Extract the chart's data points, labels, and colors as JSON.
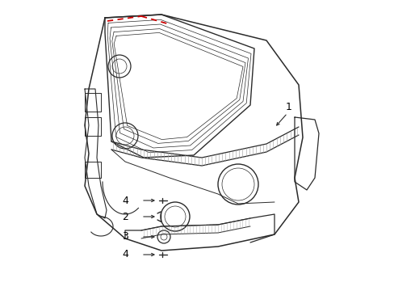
{
  "bg_color": "#ffffff",
  "line_color": "#2a2a2a",
  "red_color": "#cc0000",
  "label_color": "#000000",
  "fig_width": 4.89,
  "fig_height": 3.6,
  "dpi": 100
}
